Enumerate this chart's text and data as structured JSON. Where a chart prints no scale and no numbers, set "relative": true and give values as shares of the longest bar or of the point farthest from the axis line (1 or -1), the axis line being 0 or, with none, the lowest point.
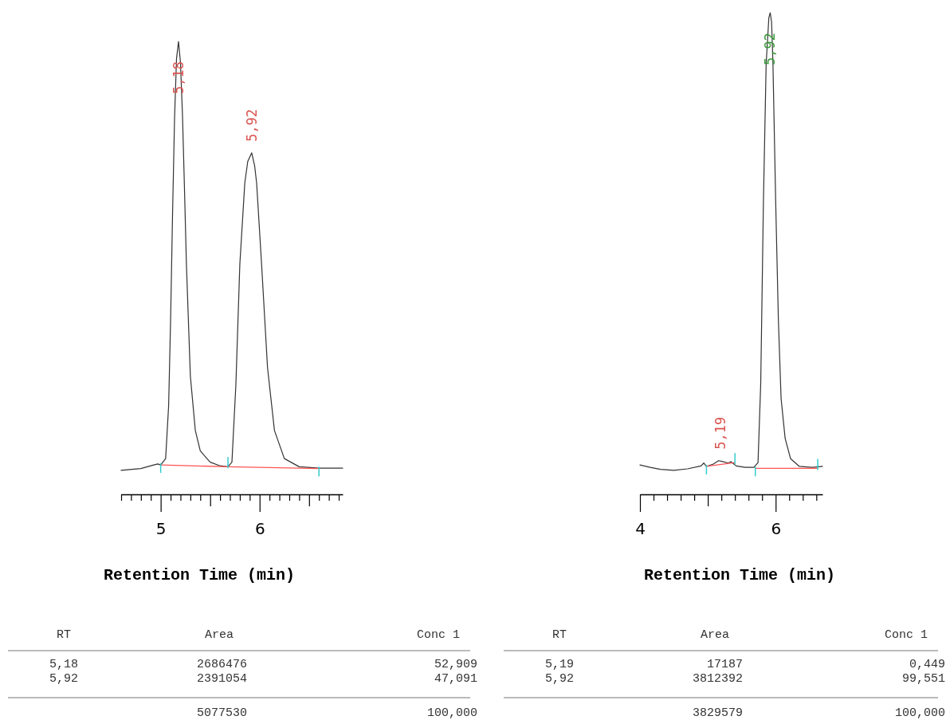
{
  "chart_data": [
    {
      "type": "line",
      "relative": true,
      "xlabel": "Retention Time (min)",
      "xlim": [
        4.6,
        6.84
      ],
      "xticks": [
        {
          "value": 4.6,
          "label": null
        },
        {
          "value": 4.7,
          "label": null
        },
        {
          "value": 4.8,
          "label": null
        },
        {
          "value": 4.9,
          "label": null
        },
        {
          "value": 5,
          "label": "5"
        },
        {
          "value": 5.1,
          "label": null
        },
        {
          "value": 5.2,
          "label": null
        },
        {
          "value": 5.3,
          "label": null
        },
        {
          "value": 5.4,
          "label": null
        },
        {
          "value": 5.5,
          "label": null
        },
        {
          "value": 5.6,
          "label": null
        },
        {
          "value": 5.7,
          "label": null
        },
        {
          "value": 5.8,
          "label": null
        },
        {
          "value": 5.9,
          "label": null
        },
        {
          "value": 6,
          "label": "6"
        },
        {
          "value": 6.1,
          "label": null
        },
        {
          "value": 6.2,
          "label": null
        },
        {
          "value": 6.3,
          "label": null
        },
        {
          "value": 6.4,
          "label": null
        },
        {
          "value": 6.5,
          "label": null
        },
        {
          "value": 6.6,
          "label": null
        },
        {
          "value": 6.7,
          "label": null
        },
        {
          "value": 6.8,
          "label": null
        }
      ],
      "series": [
        {
          "color": "#333333",
          "x": [
            4.6,
            4.8,
            4.93,
            4.97,
            5.0,
            5.05,
            5.08,
            5.1,
            5.12,
            5.14,
            5.16,
            5.18,
            5.2,
            5.22,
            5.24,
            5.26,
            5.3,
            5.35,
            5.4,
            5.5,
            5.6,
            5.68,
            5.72,
            5.76,
            5.8,
            5.85,
            5.88,
            5.92,
            5.95,
            5.97,
            6.02,
            6.08,
            6.15,
            6.25,
            6.4,
            6.6,
            6.84
          ],
          "values": [
            0.053,
            0.057,
            0.065,
            0.067,
            0.065,
            0.079,
            0.195,
            0.384,
            0.621,
            0.83,
            0.962,
            1.0,
            0.953,
            0.839,
            0.678,
            0.508,
            0.261,
            0.141,
            0.096,
            0.071,
            0.063,
            0.061,
            0.071,
            0.242,
            0.508,
            0.687,
            0.735,
            0.754,
            0.725,
            0.687,
            0.508,
            0.28,
            0.141,
            0.079,
            0.061,
            0.058,
            0.058
          ]
        },
        {
          "type": "line",
          "color": "#ff5555",
          "x": [
            5.0,
            5.68,
            6.6
          ],
          "values": [
            0.065,
            0.061,
            0.057
          ]
        }
      ],
      "annotations": [
        {
          "text": "5,18",
          "x": 5.18,
          "y": 1.0
        },
        {
          "text": "5,92",
          "x": 5.92,
          "y": 0.754
        }
      ]
    },
    {
      "type": "line",
      "relative": true,
      "xlabel": "Retention Time (min)",
      "xlim": [
        4.0,
        6.69
      ],
      "xticks": [
        {
          "value": 4,
          "label": "4"
        },
        {
          "value": 4.2,
          "label": null
        },
        {
          "value": 4.4,
          "label": null
        },
        {
          "value": 4.6,
          "label": null
        },
        {
          "value": 4.8,
          "label": null
        },
        {
          "value": 5,
          "label": null
        },
        {
          "value": 5.2,
          "label": null
        },
        {
          "value": 5.4,
          "label": null
        },
        {
          "value": 5.6,
          "label": null
        },
        {
          "value": 5.8,
          "label": null
        },
        {
          "value": 6,
          "label": "6"
        },
        {
          "value": 6.2,
          "label": null
        },
        {
          "value": 6.4,
          "label": null
        },
        {
          "value": 6.6,
          "label": null
        }
      ],
      "series": [
        {
          "color": "#333333",
          "x": [
            4.0,
            4.15,
            4.3,
            4.5,
            4.7,
            4.9,
            4.94,
            4.98,
            5.08,
            5.16,
            5.22,
            5.3,
            5.34,
            5.42,
            5.55,
            5.68,
            5.74,
            5.78,
            5.82,
            5.86,
            5.9,
            5.92,
            5.94,
            5.96,
            6.0,
            6.04,
            6.08,
            6.14,
            6.22,
            6.35,
            6.55,
            6.69
          ],
          "values": [
            0.061,
            0.056,
            0.052,
            0.05,
            0.053,
            0.059,
            0.065,
            0.058,
            0.063,
            0.07,
            0.068,
            0.065,
            0.068,
            0.059,
            0.056,
            0.056,
            0.066,
            0.23,
            0.61,
            0.895,
            0.99,
            1.0,
            0.981,
            0.895,
            0.61,
            0.363,
            0.199,
            0.116,
            0.074,
            0.058,
            0.056,
            0.058
          ]
        },
        {
          "type": "line",
          "color": "#ff5555",
          "x": [
            4.98,
            5.4
          ],
          "values": [
            0.058,
            0.066
          ]
        },
        {
          "type": "line",
          "color": "#ff5555",
          "x": [
            5.7,
            6.62
          ],
          "values": [
            0.054,
            0.054
          ]
        }
      ],
      "annotations": [
        {
          "text": "5,19",
          "x": 5.19,
          "y": 0.07
        },
        {
          "text": "5,92",
          "x": 5.92,
          "y": 1.0
        }
      ]
    },
    {
      "type": "other",
      "annotations": [
        "RT",
        "Area",
        "Conc 1",
        "5,18",
        "2686476",
        "52,909",
        "5,92",
        "2391054",
        "47,091",
        "5077530",
        "100,000"
      ]
    },
    {
      "type": "other",
      "annotations": [
        "RT",
        "Area",
        "Conc 1",
        "5,19",
        "17187",
        "0,449",
        "5,92",
        "3812392",
        "99,551",
        "3829579",
        "100,000"
      ]
    }
  ]
}
